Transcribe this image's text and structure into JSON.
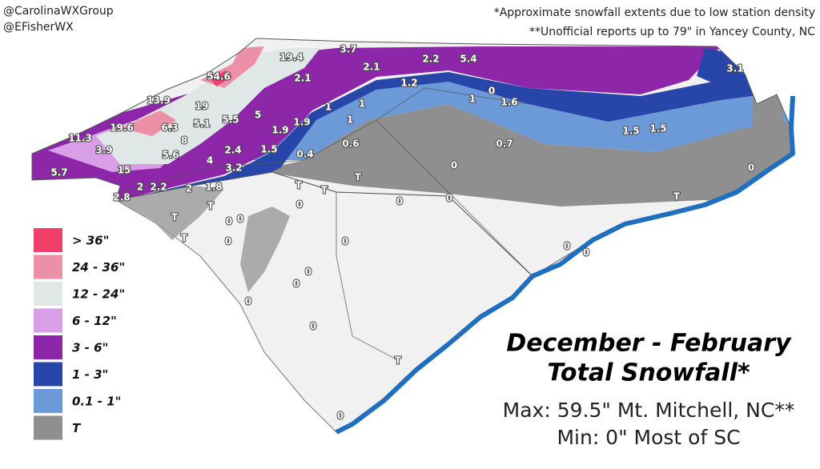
{
  "credits": [
    "@CarolinaWXGroup",
    "@EFisherWX"
  ],
  "notes": [
    "*Approximate snowfall extents due to low station density",
    "**Unofficial reports up to 79\" in Yancey County, NC"
  ],
  "legend": [
    {
      "label": "> 36\"",
      "color": "#ef3f6a"
    },
    {
      "label": "24 - 36\"",
      "color": "#ec90a8"
    },
    {
      "label": "12 - 24\"",
      "color": "#dfe8e6"
    },
    {
      "label": "6 - 12\"",
      "color": "#d89ee6"
    },
    {
      "label": "3 - 6\"",
      "color": "#8e26aa"
    },
    {
      "label": "1 - 3\"",
      "color": "#2846aa"
    },
    {
      "label": "0.1 - 1\"",
      "color": "#6c9ad8"
    },
    {
      "label": "T",
      "color": "#8f8f8f"
    }
  ],
  "title": [
    "December - February",
    "Total Snowfall*"
  ],
  "stats": [
    "Max: 59.5\" Mt. Mitchell, NC**",
    "Min: 0\" Most of SC"
  ],
  "labels": [
    "19.4",
    "3.7",
    "54.6",
    "2.1",
    "2.1",
    "2.2",
    "5.4",
    "3.1",
    "1.2",
    "13.9",
    "19",
    "0",
    "1",
    "1.6",
    "1",
    "1",
    "5.5",
    "5",
    "1",
    "19.6",
    "6.3",
    "5.1",
    "1.9",
    "1.9",
    "11.3",
    "8",
    "1.5",
    "1.5",
    "0.6",
    "0.7",
    "3.9",
    "5.6",
    "2.4",
    "1.5",
    "0.4",
    "4",
    "0",
    "0",
    "5.7",
    "15",
    "3.2",
    "T",
    "2",
    "2.2",
    "2",
    "1.8",
    "T",
    "T",
    "0",
    "0",
    "T",
    "2.8",
    "T",
    "0",
    "T",
    "0",
    "0",
    "T",
    "0",
    "0",
    "0",
    "0",
    "0",
    "0",
    "0",
    "0",
    "T",
    "0"
  ]
}
